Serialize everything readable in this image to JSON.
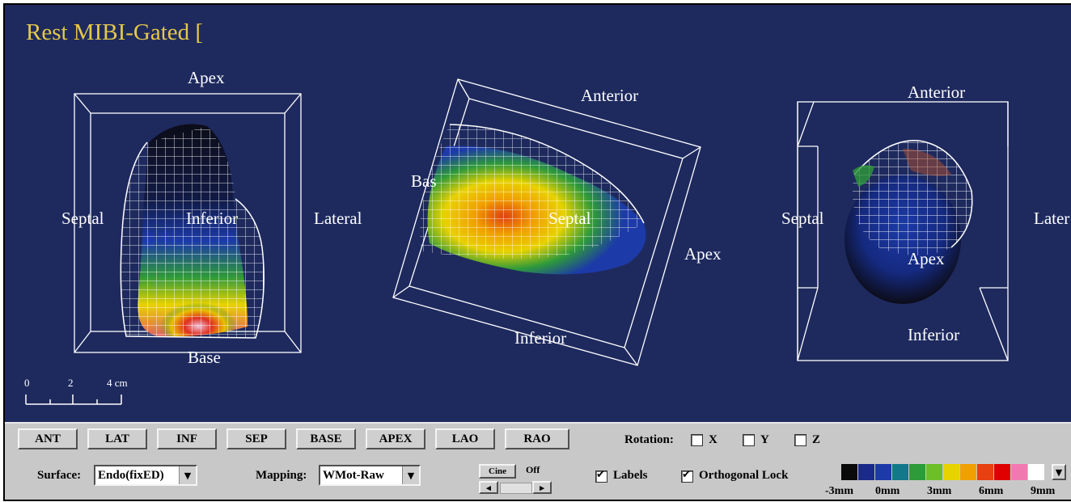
{
  "window": {
    "title": "Rest MIBI-Gated ["
  },
  "views": {
    "left": {
      "top": "Apex",
      "left": "Septal",
      "center": "Inferior",
      "right": "Lateral",
      "bottom": "Base"
    },
    "middle": {
      "top": "Anterior",
      "left": "Bas",
      "center": "Septal",
      "right": "Apex",
      "bottom": "Inferior"
    },
    "right": {
      "top": "Anterior",
      "left": "Septal",
      "center": "Apex",
      "right": "Later",
      "bottom": "Inferior"
    }
  },
  "scale_bar": {
    "t0": "0",
    "t2": "2",
    "t4": "4 cm"
  },
  "toolbar": {
    "view_buttons": [
      "ANT",
      "LAT",
      "INF",
      "SEP",
      "BASE",
      "APEX",
      "LAO",
      "RAO"
    ],
    "rotation_label": "Rotation:",
    "rotation_x": "X",
    "rotation_y": "Y",
    "rotation_z": "Z",
    "surface_label": "Surface:",
    "surface_value": "Endo(fixED)",
    "mapping_label": "Mapping:",
    "mapping_value": "WMot-Raw",
    "cine_label": "Cine",
    "cine_state": "Off",
    "labels_checkbox": "Labels",
    "labels_checked": true,
    "ortho_checkbox": "Orthogonal Lock",
    "ortho_checked": true
  },
  "colorbar": {
    "colors": [
      "#0a0a0a",
      "#1a2a8a",
      "#1c3aa8",
      "#12788a",
      "#2e9a3a",
      "#6cbf28",
      "#e8d200",
      "#f0a000",
      "#e84010",
      "#e00000",
      "#f07ab0",
      "#ffffff"
    ],
    "ticks": [
      "-3mm",
      "0mm",
      "3mm",
      "6mm",
      "9mm"
    ]
  },
  "colors": {
    "background": "#1e2a5e",
    "title": "#e6c84a",
    "toolbar": "#c8c8c8"
  }
}
